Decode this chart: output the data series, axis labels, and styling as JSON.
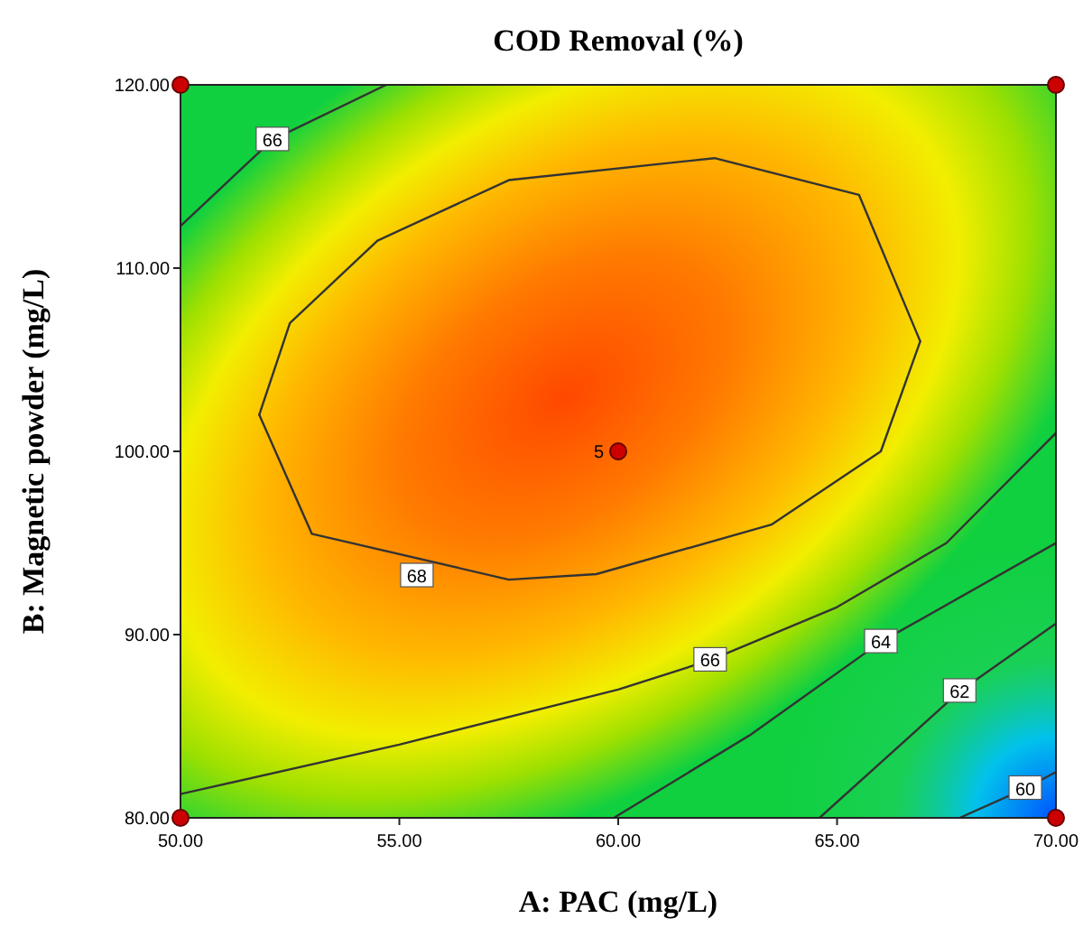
{
  "chart_data": {
    "type": "line",
    "title": "COD Removal (%)",
    "xlabel": "A: PAC (mg/L)",
    "ylabel": "B: Magnetic powder (mg/L)",
    "xlim": [
      50,
      70
    ],
    "ylim": [
      80,
      120
    ],
    "xticks": [
      {
        "value": 50,
        "label": "50.00"
      },
      {
        "value": 55,
        "label": "55.00"
      },
      {
        "value": 60,
        "label": "60.00"
      },
      {
        "value": 65,
        "label": "65.00"
      },
      {
        "value": 70,
        "label": "70.00"
      }
    ],
    "yticks": [
      {
        "value": 80,
        "label": "80.00"
      },
      {
        "value": 90,
        "label": "90.00"
      },
      {
        "value": 100,
        "label": "100.00"
      },
      {
        "value": 110,
        "label": "110.00"
      },
      {
        "value": 120,
        "label": "120.00"
      }
    ],
    "series": [
      {
        "color": "#333333",
        "x": [
          51.8,
          52.5,
          54.5,
          57.5,
          62.2,
          65.5,
          66.9
        ],
        "values": [
          102,
          107,
          111.5,
          114.8,
          116,
          114,
          106
        ]
      },
      {
        "color": "#333333",
        "x": [
          51.8,
          53,
          57.5,
          59.5,
          63.5,
          66,
          66.9
        ],
        "values": [
          102,
          95.5,
          93,
          93.3,
          96,
          100,
          106
        ]
      },
      {
        "color": "#333333",
        "x": [
          50,
          52.1,
          54.7
        ],
        "values": [
          112.3,
          117,
          120
        ]
      },
      {
        "color": "#333333",
        "x": [
          50,
          55,
          60,
          62.1,
          65,
          67.5,
          70
        ],
        "values": [
          81.3,
          84,
          87,
          88.6,
          91.5,
          95,
          101
        ]
      },
      {
        "color": "#333333",
        "x": [
          59.9,
          63,
          66,
          70
        ],
        "values": [
          80,
          84.5,
          89.6,
          95
        ]
      },
      {
        "color": "#333333",
        "x": [
          64.6,
          67.8,
          70
        ],
        "values": [
          80,
          86.9,
          90.6
        ]
      },
      {
        "color": "#333333",
        "x": [
          67.8,
          69.3,
          70
        ],
        "values": [
          80,
          81.6,
          82.5
        ]
      },
      {
        "type": "scatter",
        "color": "#cc0000",
        "x": [
          50,
          50,
          70,
          70,
          60
        ],
        "values": [
          80,
          120,
          80,
          120,
          100
        ]
      }
    ],
    "annotations": [
      {
        "text": "66",
        "x": 52.1,
        "y": 117
      },
      {
        "text": "68",
        "x": 55.4,
        "y": 93.2
      },
      {
        "text": "66",
        "x": 62.1,
        "y": 88.6
      },
      {
        "text": "64",
        "x": 66,
        "y": 89.6
      },
      {
        "text": "62",
        "x": 67.8,
        "y": 86.9
      },
      {
        "text": "60",
        "x": 69.3,
        "y": 81.6
      },
      {
        "text": "5",
        "x": 60,
        "y": 100
      }
    ]
  }
}
